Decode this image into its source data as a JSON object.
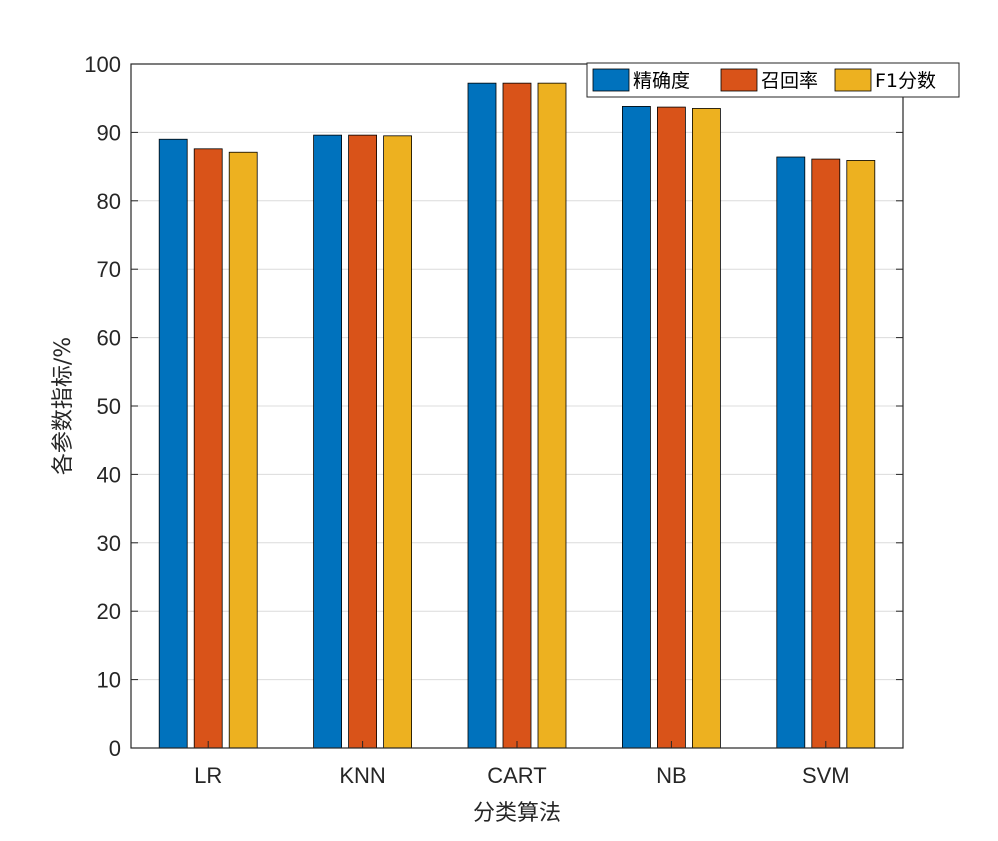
{
  "chart_data": {
    "type": "bar",
    "title": "",
    "xlabel": "分类算法",
    "ylabel": "各参数指标/%",
    "categories": [
      "LR",
      "KNN",
      "CART",
      "NB",
      "SVM"
    ],
    "ylim": [
      0,
      100
    ],
    "yticks": [
      0,
      10,
      20,
      30,
      40,
      50,
      60,
      70,
      80,
      90,
      100
    ],
    "grid": "horizontal",
    "legend_position": "top-right",
    "series": [
      {
        "name": "精确度",
        "color": "#0072BD",
        "values": [
          89.0,
          89.6,
          97.2,
          93.8,
          86.4
        ]
      },
      {
        "name": "召回率",
        "color": "#D95319",
        "values": [
          87.6,
          89.6,
          97.2,
          93.7,
          86.1
        ]
      },
      {
        "name": "F1分数",
        "color": "#EDB120",
        "values": [
          87.1,
          89.5,
          97.2,
          93.5,
          85.9
        ]
      }
    ]
  }
}
